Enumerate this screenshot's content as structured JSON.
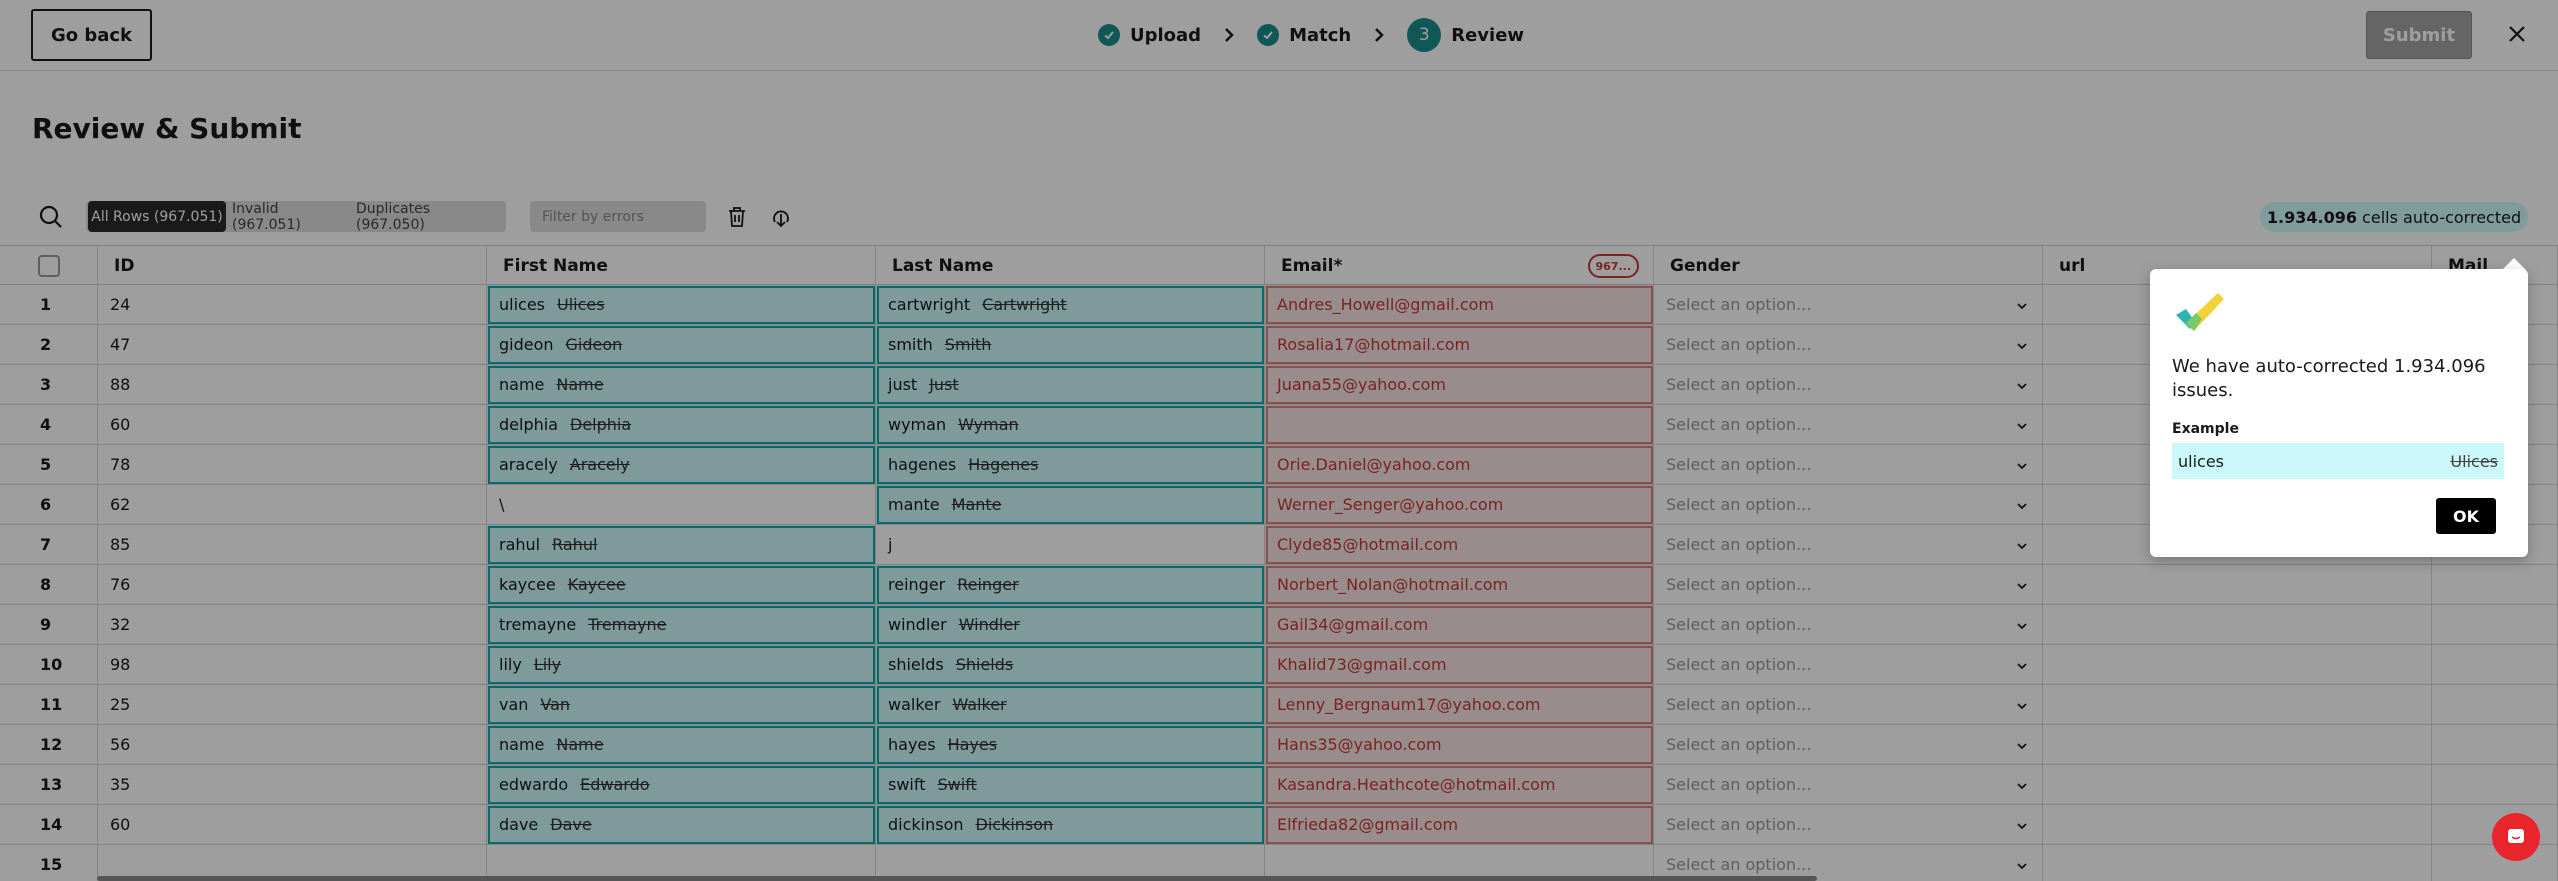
{
  "header": {
    "go_back": "Go back",
    "steps": [
      {
        "label": "Upload",
        "done": true
      },
      {
        "label": "Match",
        "done": true
      },
      {
        "label": "Review",
        "num": "3"
      }
    ],
    "submit": "Submit"
  },
  "page_title": "Review & Submit",
  "filters": {
    "all_rows": "All Rows (967.051)",
    "invalid": "Invalid (967.051)",
    "duplicates": "Duplicates (967.050)",
    "filter_placeholder": "Filter by errors",
    "autocorrected_count": "1.934.096",
    "autocorrected_suffix": " cells auto-corrected"
  },
  "columns": {
    "id": "ID",
    "first_name": "First Name",
    "last_name": "Last Name",
    "email": "Email*",
    "email_badge": "967...",
    "gender": "Gender",
    "url": "url",
    "mail": "Mail"
  },
  "select_placeholder": "Select an option...",
  "rows": [
    {
      "n": "1",
      "id": "24",
      "fn": "ulices",
      "fn_orig": "Ulices",
      "ln": "cartwright",
      "ln_orig": "Cartwright",
      "email": "Andres_Howell@gmail.com"
    },
    {
      "n": "2",
      "id": "47",
      "fn": "gideon",
      "fn_orig": "Gideon",
      "ln": "smith",
      "ln_orig": "Smith",
      "email": "Rosalia17@hotmail.com"
    },
    {
      "n": "3",
      "id": "88",
      "fn": "name",
      "fn_orig": "Name",
      "ln": "just",
      "ln_orig": "Just",
      "email": "Juana55@yahoo.com"
    },
    {
      "n": "4",
      "id": "60",
      "fn": "delphia",
      "fn_orig": "Delphia",
      "ln": "wyman",
      "ln_orig": "Wyman",
      "email": ""
    },
    {
      "n": "5",
      "id": "78",
      "fn": "aracely",
      "fn_orig": "Aracely",
      "ln": "hagenes",
      "ln_orig": "Hagenes",
      "email": "Orie.Daniel@yahoo.com"
    },
    {
      "n": "6",
      "id": "62",
      "fn": "\\",
      "fn_orig": "",
      "ln": "mante",
      "ln_orig": "Mante",
      "email": "Werner_Senger@yahoo.com"
    },
    {
      "n": "7",
      "id": "85",
      "fn": "rahul",
      "fn_orig": "Rahul",
      "ln": "j",
      "ln_orig": "",
      "email": "Clyde85@hotmail.com"
    },
    {
      "n": "8",
      "id": "76",
      "fn": "kaycee",
      "fn_orig": "Kaycee",
      "ln": "reinger",
      "ln_orig": "Reinger",
      "email": "Norbert_Nolan@hotmail.com"
    },
    {
      "n": "9",
      "id": "32",
      "fn": "tremayne",
      "fn_orig": "Tremayne",
      "ln": "windler",
      "ln_orig": "Windler",
      "email": "Gail34@gmail.com"
    },
    {
      "n": "10",
      "id": "98",
      "fn": "lily",
      "fn_orig": "Lily",
      "ln": "shields",
      "ln_orig": "Shields",
      "email": "Khalid73@gmail.com"
    },
    {
      "n": "11",
      "id": "25",
      "fn": "van",
      "fn_orig": "Van",
      "ln": "walker",
      "ln_orig": "Walker",
      "email": "Lenny_Bergnaum17@yahoo.com"
    },
    {
      "n": "12",
      "id": "56",
      "fn": "name",
      "fn_orig": "Name",
      "ln": "hayes",
      "ln_orig": "Hayes",
      "email": "Hans35@yahoo.com"
    },
    {
      "n": "13",
      "id": "35",
      "fn": "edwardo",
      "fn_orig": "Edwardo",
      "ln": "swift",
      "ln_orig": "Swift",
      "email": "Kasandra.Heathcote@hotmail.com"
    },
    {
      "n": "14",
      "id": "60",
      "fn": "dave",
      "fn_orig": "Dave",
      "ln": "dickinson",
      "ln_orig": "Dickinson",
      "email": "Elfrieda82@gmail.com"
    },
    {
      "n": "15",
      "id": "",
      "fn": "",
      "fn_orig": "",
      "ln": "",
      "ln_orig": "",
      "email": ""
    }
  ],
  "popover": {
    "message": "We have auto-corrected 1.934.096 issues.",
    "example_label": "Example",
    "example_new": "ulices",
    "example_old": "Ulices",
    "ok": "OK"
  },
  "colors": {
    "accent": "#1b8e8a",
    "fixed_bg": "#cbf9fb",
    "invalid_text": "#c33b36"
  }
}
